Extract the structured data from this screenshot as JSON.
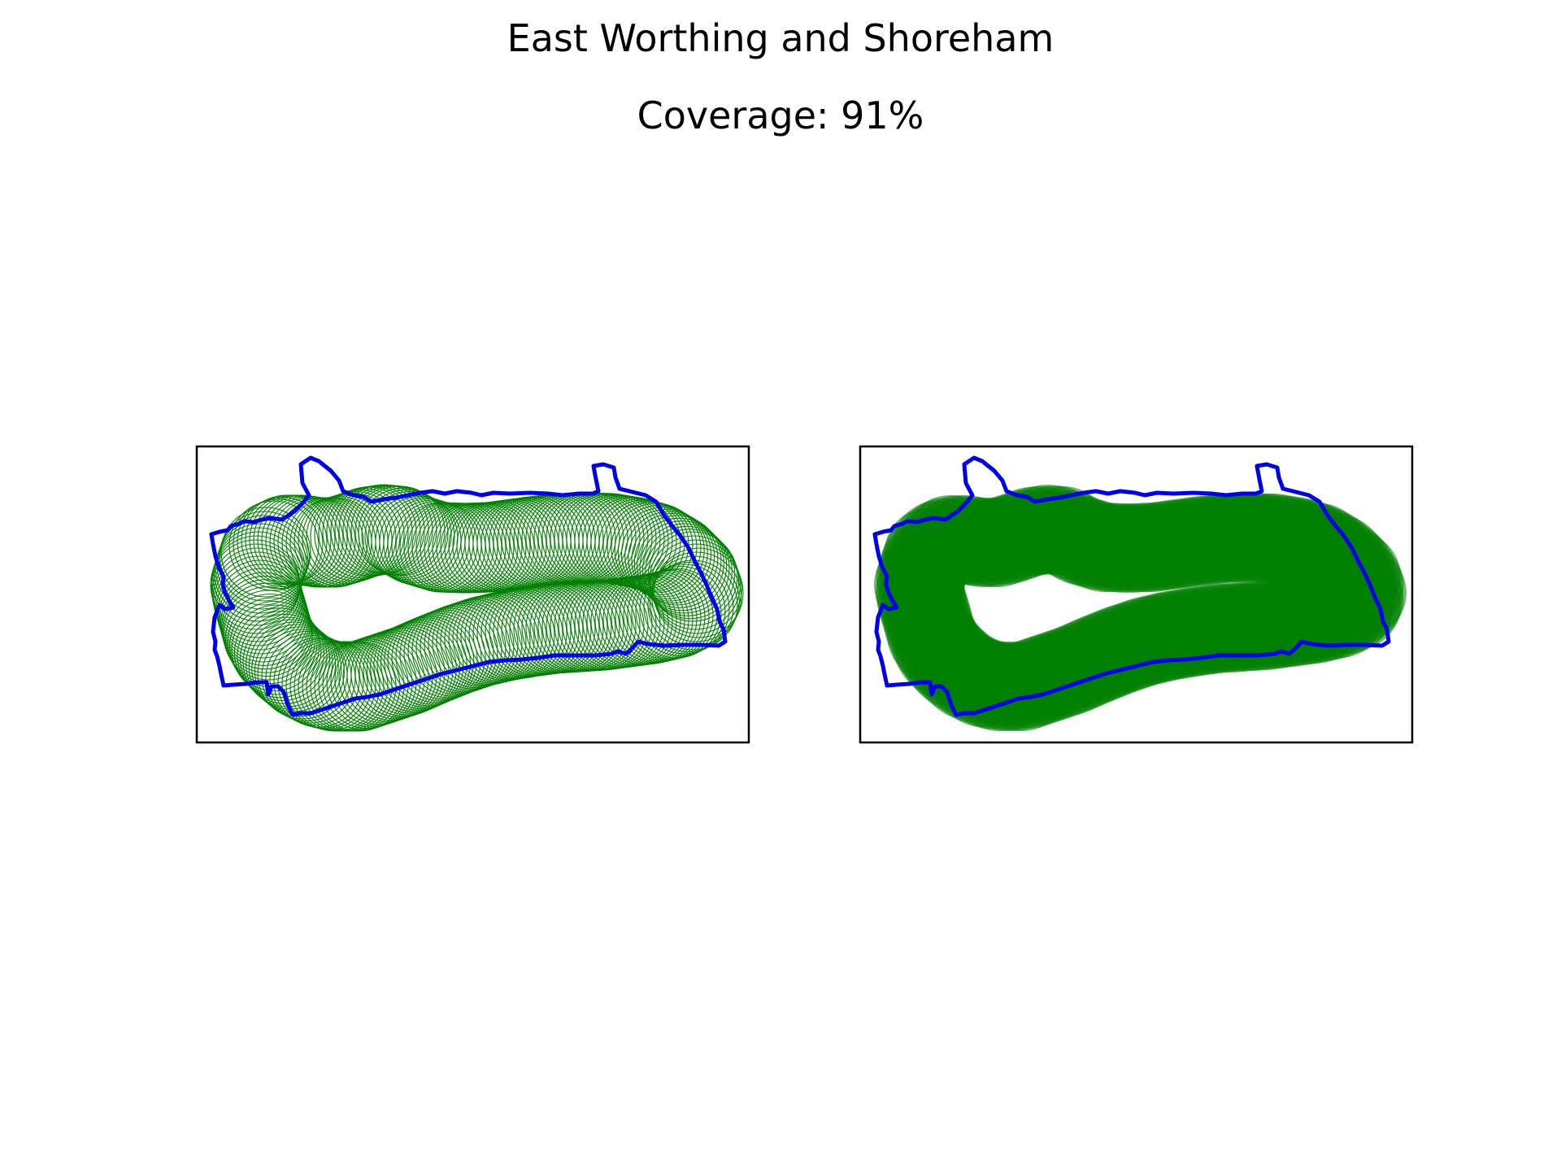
{
  "figure": {
    "title": "East Worthing and Shoreham",
    "subtitle": "Coverage: 91%"
  },
  "colors": {
    "boundary": "#0000ee",
    "coverage": "#008000",
    "frame": "#000000"
  },
  "panels": [
    {
      "id": "left",
      "style": "outline-circles"
    },
    {
      "id": "right",
      "style": "filled-circles"
    }
  ]
}
